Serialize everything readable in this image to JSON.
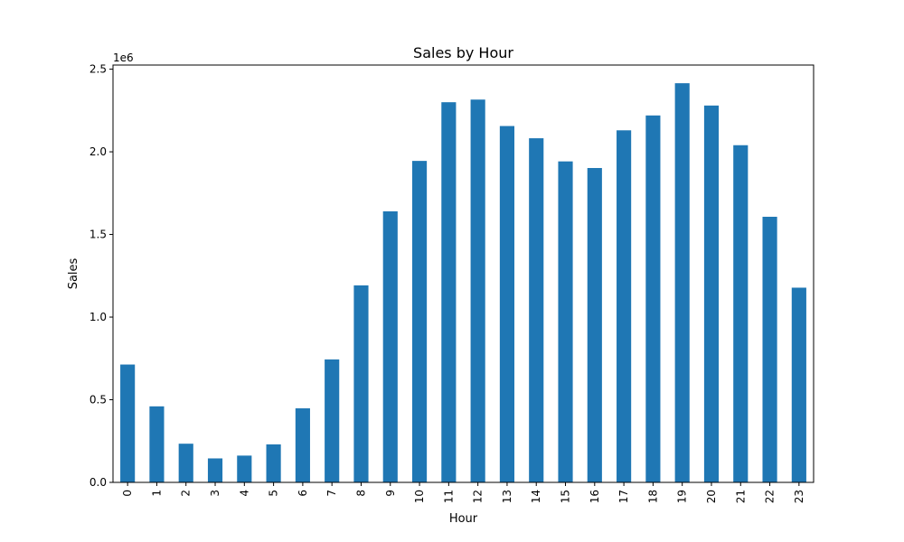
{
  "chart_data": {
    "type": "bar",
    "title": "Sales by Hour",
    "xlabel": "Hour",
    "ylabel": "Sales",
    "y_offset_label": "1e6",
    "categories": [
      "0",
      "1",
      "2",
      "3",
      "4",
      "5",
      "6",
      "7",
      "8",
      "9",
      "10",
      "11",
      "12",
      "13",
      "14",
      "15",
      "16",
      "17",
      "18",
      "19",
      "20",
      "21",
      "22",
      "23"
    ],
    "values": [
      713000,
      460000,
      234000,
      145000,
      162000,
      230000,
      448000,
      744000,
      1192000,
      1640000,
      1945000,
      2300000,
      2316000,
      2156000,
      2082000,
      1942000,
      1902000,
      2130000,
      2220000,
      2415000,
      2280000,
      2040000,
      1607000,
      1178000
    ],
    "y_ticks": [
      0,
      500000,
      1000000,
      1500000,
      2000000,
      2500000
    ],
    "y_tick_labels": [
      "0.0",
      "0.5",
      "1.0",
      "1.5",
      "2.0",
      "2.5"
    ],
    "ylim": [
      0,
      2525000
    ],
    "grid": false,
    "legend": "none",
    "bar_color": "#1f77b4"
  }
}
